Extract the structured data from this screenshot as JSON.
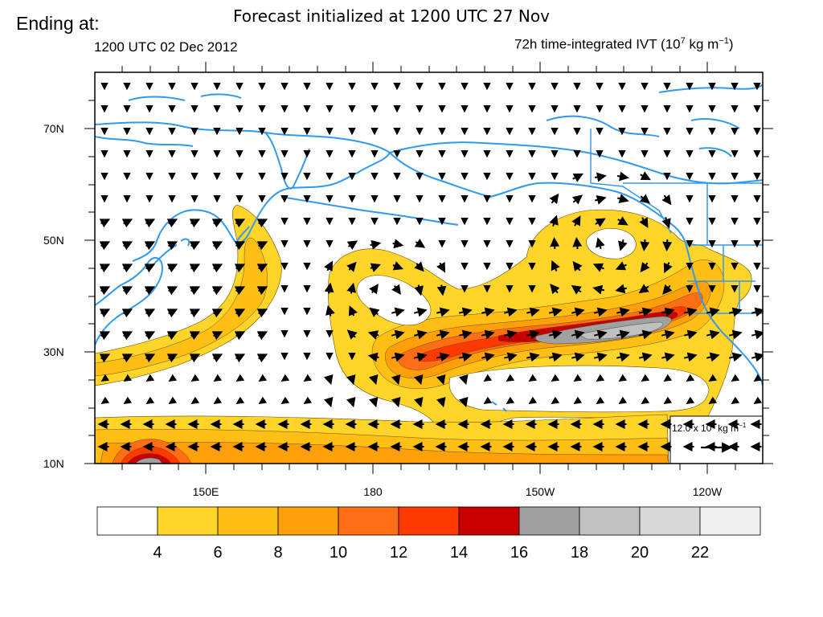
{
  "header": {
    "ending_label": "Ending at:",
    "forecast_title": "Forecast initialized at 1200 UTC 27 Nov",
    "valid_time": "1200 UTC 02 Dec 2012",
    "field_title_prefix": "72h time-integrated IVT (10",
    "field_title_exp1": "7",
    "field_title_mid": " kg m",
    "field_title_exp2": "−1",
    "field_title_suffix": ")"
  },
  "map": {
    "lat_labels": [
      "70N",
      "50N",
      "30N",
      "10N"
    ],
    "lon_labels": [
      "150E",
      "180",
      "150W",
      "120W"
    ],
    "coastline_color": "#3399ee",
    "vector_color": "#000000",
    "reference_vector": {
      "value_label": "12.0 x 10",
      "exp": "7",
      "unit_label": " kg m",
      "unit_exp": "−1"
    }
  },
  "colorbar": {
    "labels": [
      "4",
      "6",
      "8",
      "10",
      "12",
      "14",
      "16",
      "18",
      "20",
      "22"
    ],
    "colors": [
      "#ffffff",
      "#ffd52a",
      "#ffbf14",
      "#ff9f0a",
      "#ff6e14",
      "#ff3a00",
      "#c80000",
      "#a0a0a0",
      "#c0c0c0",
      "#d8d8d8",
      "#efefef"
    ]
  }
}
